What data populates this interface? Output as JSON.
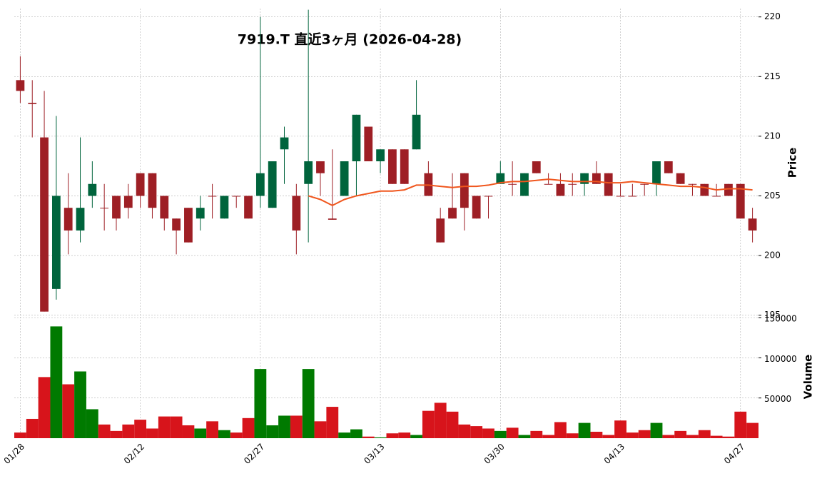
{
  "chart_data": {
    "type": "candlestick",
    "title": "7919.T  直近3ヶ月  (2026-04-28)",
    "ylabel": "Price",
    "categories": [
      "01/28",
      null,
      null,
      null,
      null,
      null,
      null,
      null,
      null,
      null,
      "02/12",
      null,
      null,
      null,
      null,
      null,
      null,
      null,
      null,
      null,
      "02/27",
      null,
      null,
      null,
      null,
      null,
      null,
      null,
      null,
      null,
      "03/13",
      null,
      null,
      null,
      null,
      null,
      null,
      null,
      null,
      null,
      "03/30",
      null,
      null,
      null,
      null,
      null,
      null,
      null,
      null,
      null,
      "04/13",
      null,
      null,
      null,
      null,
      null,
      null,
      null,
      null,
      null,
      "04/27",
      null
    ],
    "open": [
      214.7,
      212.8,
      209.9,
      197.2,
      204.0,
      202.1,
      205.0,
      204.0,
      205.0,
      205.0,
      206.9,
      206.9,
      205.0,
      203.1,
      204.0,
      203.1,
      205.0,
      203.1,
      205.0,
      205.0,
      205.0,
      204.0,
      208.9,
      205.0,
      206.0,
      207.9,
      203.1,
      205.0,
      207.9,
      210.8,
      207.9,
      208.9,
      208.9,
      208.9,
      206.9,
      203.1,
      204.0,
      206.9,
      205.0,
      205.0,
      206.0,
      206.0,
      205.0,
      207.9,
      206.0,
      206.0,
      206.0,
      206.0,
      206.9,
      206.9,
      205.0,
      205.0,
      206.0,
      206.0,
      207.9,
      206.9,
      206.0,
      206.0,
      205.0,
      206.0,
      206.0,
      203.1
    ],
    "high": [
      216.7,
      214.7,
      213.8,
      211.7,
      206.9,
      209.9,
      207.9,
      206.0,
      205.0,
      206.0,
      206.9,
      206.9,
      205.0,
      203.1,
      204.0,
      205.0,
      206.0,
      205.0,
      205.0,
      205.0,
      220.0,
      207.9,
      210.8,
      206.0,
      220.6,
      207.9,
      208.9,
      207.9,
      211.8,
      210.8,
      208.9,
      208.9,
      208.9,
      214.7,
      207.9,
      204.0,
      206.9,
      206.9,
      205.0,
      205.0,
      207.9,
      207.9,
      206.9,
      207.9,
      206.9,
      206.9,
      206.9,
      206.9,
      207.9,
      206.9,
      206.0,
      206.0,
      206.0,
      207.9,
      207.9,
      206.9,
      206.0,
      206.0,
      206.0,
      206.0,
      206.0,
      204.0
    ],
    "low": [
      212.8,
      209.9,
      195.3,
      196.3,
      200.1,
      201.1,
      204.0,
      202.1,
      202.1,
      203.1,
      204.0,
      203.1,
      202.1,
      200.1,
      201.1,
      202.1,
      203.1,
      203.1,
      204.0,
      203.1,
      204.0,
      204.0,
      206.0,
      200.1,
      201.1,
      205.0,
      203.0,
      205.0,
      205.0,
      207.9,
      206.9,
      206.0,
      206.0,
      208.9,
      205.0,
      201.1,
      203.1,
      202.1,
      203.1,
      203.1,
      206.0,
      205.0,
      205.0,
      206.9,
      206.0,
      205.0,
      205.0,
      205.0,
      206.0,
      205.0,
      205.0,
      205.0,
      205.0,
      205.0,
      206.9,
      206.0,
      205.0,
      205.0,
      205.0,
      205.0,
      203.1,
      201.1
    ],
    "close": [
      213.8,
      212.7,
      195.3,
      205.0,
      202.1,
      204.0,
      206.0,
      204.0,
      203.1,
      204.0,
      205.0,
      204.0,
      203.1,
      202.1,
      201.1,
      204.0,
      205.0,
      205.0,
      205.0,
      203.1,
      206.9,
      207.9,
      209.9,
      202.1,
      207.9,
      206.9,
      203.0,
      207.9,
      211.8,
      207.9,
      208.9,
      206.0,
      206.0,
      211.8,
      205.0,
      201.1,
      203.1,
      204.0,
      203.1,
      205.0,
      206.9,
      206.0,
      206.9,
      206.9,
      206.0,
      205.0,
      206.0,
      206.9,
      206.0,
      205.0,
      205.0,
      205.0,
      206.0,
      207.9,
      206.9,
      206.0,
      206.0,
      205.0,
      205.0,
      205.0,
      203.1,
      202.1
    ],
    "up_color": "#00643c",
    "down_color": "#9e1f25",
    "ma": {
      "color": "#f0561d",
      "values": [
        null,
        null,
        null,
        null,
        null,
        null,
        null,
        null,
        null,
        null,
        null,
        null,
        null,
        null,
        null,
        null,
        null,
        null,
        null,
        null,
        null,
        null,
        null,
        null,
        205.0,
        204.7,
        204.2,
        204.7,
        205.0,
        205.2,
        205.4,
        205.4,
        205.5,
        205.9,
        205.9,
        205.8,
        205.7,
        205.8,
        205.8,
        205.9,
        206.1,
        206.2,
        206.2,
        206.3,
        206.4,
        206.3,
        206.2,
        206.2,
        206.2,
        206.1,
        206.1,
        206.2,
        206.1,
        206.0,
        205.9,
        205.8,
        205.8,
        205.7,
        205.5,
        205.6,
        205.6,
        205.5
      ]
    },
    "ylim": [
      194.8,
      220.7
    ],
    "yticks": [
      195,
      200,
      205,
      210,
      215,
      220
    ],
    "grid": true,
    "volume": {
      "ylabel": "Volume",
      "up_color": "#007a00",
      "down_color": "#d7141b",
      "values": [
        7000,
        24000,
        76000,
        139000,
        67000,
        83000,
        36000,
        17000,
        9000,
        17000,
        23000,
        12000,
        27000,
        27000,
        16000,
        12000,
        21000,
        10000,
        7000,
        25000,
        86000,
        16000,
        28000,
        28000,
        86000,
        21000,
        39000,
        7000,
        11000,
        2000,
        1000,
        6000,
        7000,
        4000,
        34000,
        44000,
        33000,
        17000,
        15000,
        12000,
        9000,
        13000,
        4000,
        9000,
        4000,
        20000,
        6000,
        19000,
        8000,
        4000,
        22000,
        7000,
        10000,
        19000,
        4000,
        9000,
        4000,
        10000,
        3000,
        2000,
        33000,
        19000
      ],
      "ylim": [
        0,
        150000
      ],
      "yticks": [
        50000,
        100000,
        150000
      ]
    }
  }
}
